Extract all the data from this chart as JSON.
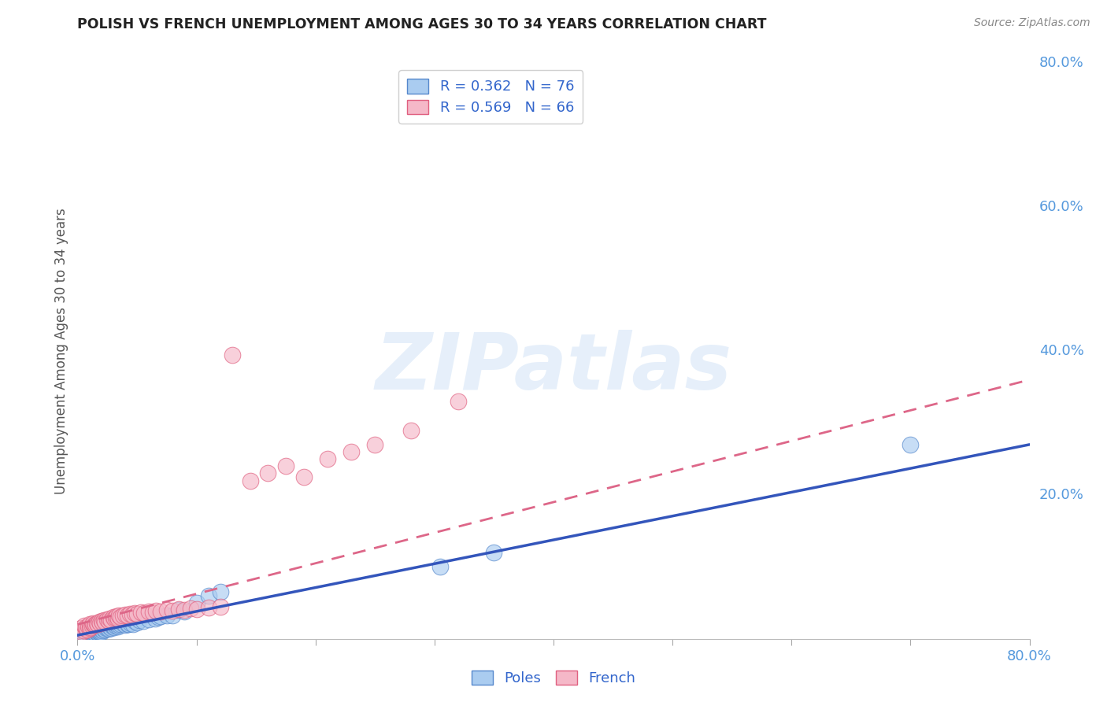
{
  "title": "POLISH VS FRENCH UNEMPLOYMENT AMONG AGES 30 TO 34 YEARS CORRELATION CHART",
  "source": "Source: ZipAtlas.com",
  "ylabel": "Unemployment Among Ages 30 to 34 years",
  "xlim": [
    0.0,
    0.8
  ],
  "ylim": [
    0.0,
    0.8
  ],
  "background_color": "#ffffff",
  "grid_color": "#d0d0d0",
  "poles_color": "#aaccf0",
  "french_color": "#f5b8c8",
  "poles_edge_color": "#5588cc",
  "french_edge_color": "#e06080",
  "poles_line_color": "#3355bb",
  "french_line_color": "#dd6688",
  "poles_R": 0.362,
  "poles_N": 76,
  "french_R": 0.569,
  "french_N": 66,
  "watermark_text": "ZIPatlas",
  "title_color": "#222222",
  "axis_label_color": "#555555",
  "tick_color": "#5599dd",
  "legend_text_color": "#3366cc",
  "poles_line_x0": 0.0,
  "poles_line_y0": 0.005,
  "poles_line_x1": 0.8,
  "poles_line_y1": 0.27,
  "french_line_x0": 0.0,
  "french_line_y0": 0.02,
  "french_line_x1": 0.8,
  "french_line_y1": 0.36,
  "poles_scatter_x": [
    0.002,
    0.003,
    0.004,
    0.005,
    0.006,
    0.007,
    0.008,
    0.009,
    0.01,
    0.01,
    0.01,
    0.01,
    0.01,
    0.012,
    0.012,
    0.012,
    0.013,
    0.013,
    0.014,
    0.015,
    0.015,
    0.015,
    0.016,
    0.016,
    0.017,
    0.017,
    0.018,
    0.018,
    0.019,
    0.019,
    0.02,
    0.02,
    0.02,
    0.021,
    0.022,
    0.022,
    0.023,
    0.024,
    0.025,
    0.025,
    0.026,
    0.027,
    0.028,
    0.029,
    0.03,
    0.03,
    0.031,
    0.032,
    0.033,
    0.034,
    0.035,
    0.036,
    0.038,
    0.04,
    0.042,
    0.043,
    0.045,
    0.047,
    0.048,
    0.05,
    0.052,
    0.055,
    0.06,
    0.065,
    0.068,
    0.07,
    0.075,
    0.08,
    0.085,
    0.09,
    0.1,
    0.11,
    0.12,
    0.305,
    0.35,
    0.7
  ],
  "poles_scatter_y": [
    0.01,
    0.008,
    0.006,
    0.01,
    0.009,
    0.007,
    0.008,
    0.01,
    0.005,
    0.007,
    0.008,
    0.006,
    0.009,
    0.009,
    0.01,
    0.008,
    0.012,
    0.01,
    0.009,
    0.007,
    0.011,
    0.013,
    0.01,
    0.012,
    0.008,
    0.011,
    0.01,
    0.014,
    0.009,
    0.012,
    0.01,
    0.013,
    0.015,
    0.012,
    0.014,
    0.016,
    0.013,
    0.015,
    0.016,
    0.018,
    0.014,
    0.017,
    0.015,
    0.018,
    0.017,
    0.019,
    0.016,
    0.018,
    0.02,
    0.017,
    0.019,
    0.02,
    0.022,
    0.019,
    0.021,
    0.02,
    0.022,
    0.021,
    0.025,
    0.023,
    0.026,
    0.025,
    0.027,
    0.028,
    0.03,
    0.031,
    0.032,
    0.033,
    0.04,
    0.038,
    0.05,
    0.06,
    0.065,
    0.1,
    0.12,
    0.27
  ],
  "french_scatter_x": [
    0.003,
    0.004,
    0.005,
    0.006,
    0.007,
    0.007,
    0.008,
    0.009,
    0.01,
    0.01,
    0.011,
    0.012,
    0.013,
    0.013,
    0.014,
    0.015,
    0.016,
    0.017,
    0.018,
    0.019,
    0.02,
    0.021,
    0.022,
    0.023,
    0.025,
    0.026,
    0.027,
    0.028,
    0.03,
    0.031,
    0.032,
    0.033,
    0.034,
    0.035,
    0.036,
    0.038,
    0.04,
    0.042,
    0.044,
    0.046,
    0.048,
    0.05,
    0.053,
    0.056,
    0.06,
    0.063,
    0.066,
    0.07,
    0.075,
    0.08,
    0.085,
    0.09,
    0.095,
    0.1,
    0.11,
    0.12,
    0.13,
    0.145,
    0.16,
    0.175,
    0.19,
    0.21,
    0.23,
    0.25,
    0.28,
    0.32
  ],
  "french_scatter_y": [
    0.015,
    0.01,
    0.012,
    0.018,
    0.014,
    0.016,
    0.013,
    0.017,
    0.015,
    0.02,
    0.016,
    0.018,
    0.02,
    0.022,
    0.019,
    0.021,
    0.022,
    0.02,
    0.024,
    0.022,
    0.025,
    0.023,
    0.026,
    0.024,
    0.027,
    0.025,
    0.028,
    0.026,
    0.03,
    0.028,
    0.029,
    0.031,
    0.028,
    0.033,
    0.03,
    0.032,
    0.034,
    0.033,
    0.035,
    0.034,
    0.036,
    0.035,
    0.037,
    0.036,
    0.038,
    0.037,
    0.039,
    0.038,
    0.04,
    0.039,
    0.041,
    0.04,
    0.042,
    0.041,
    0.043,
    0.044,
    0.395,
    0.22,
    0.23,
    0.24,
    0.225,
    0.25,
    0.26,
    0.27,
    0.29,
    0.33
  ]
}
